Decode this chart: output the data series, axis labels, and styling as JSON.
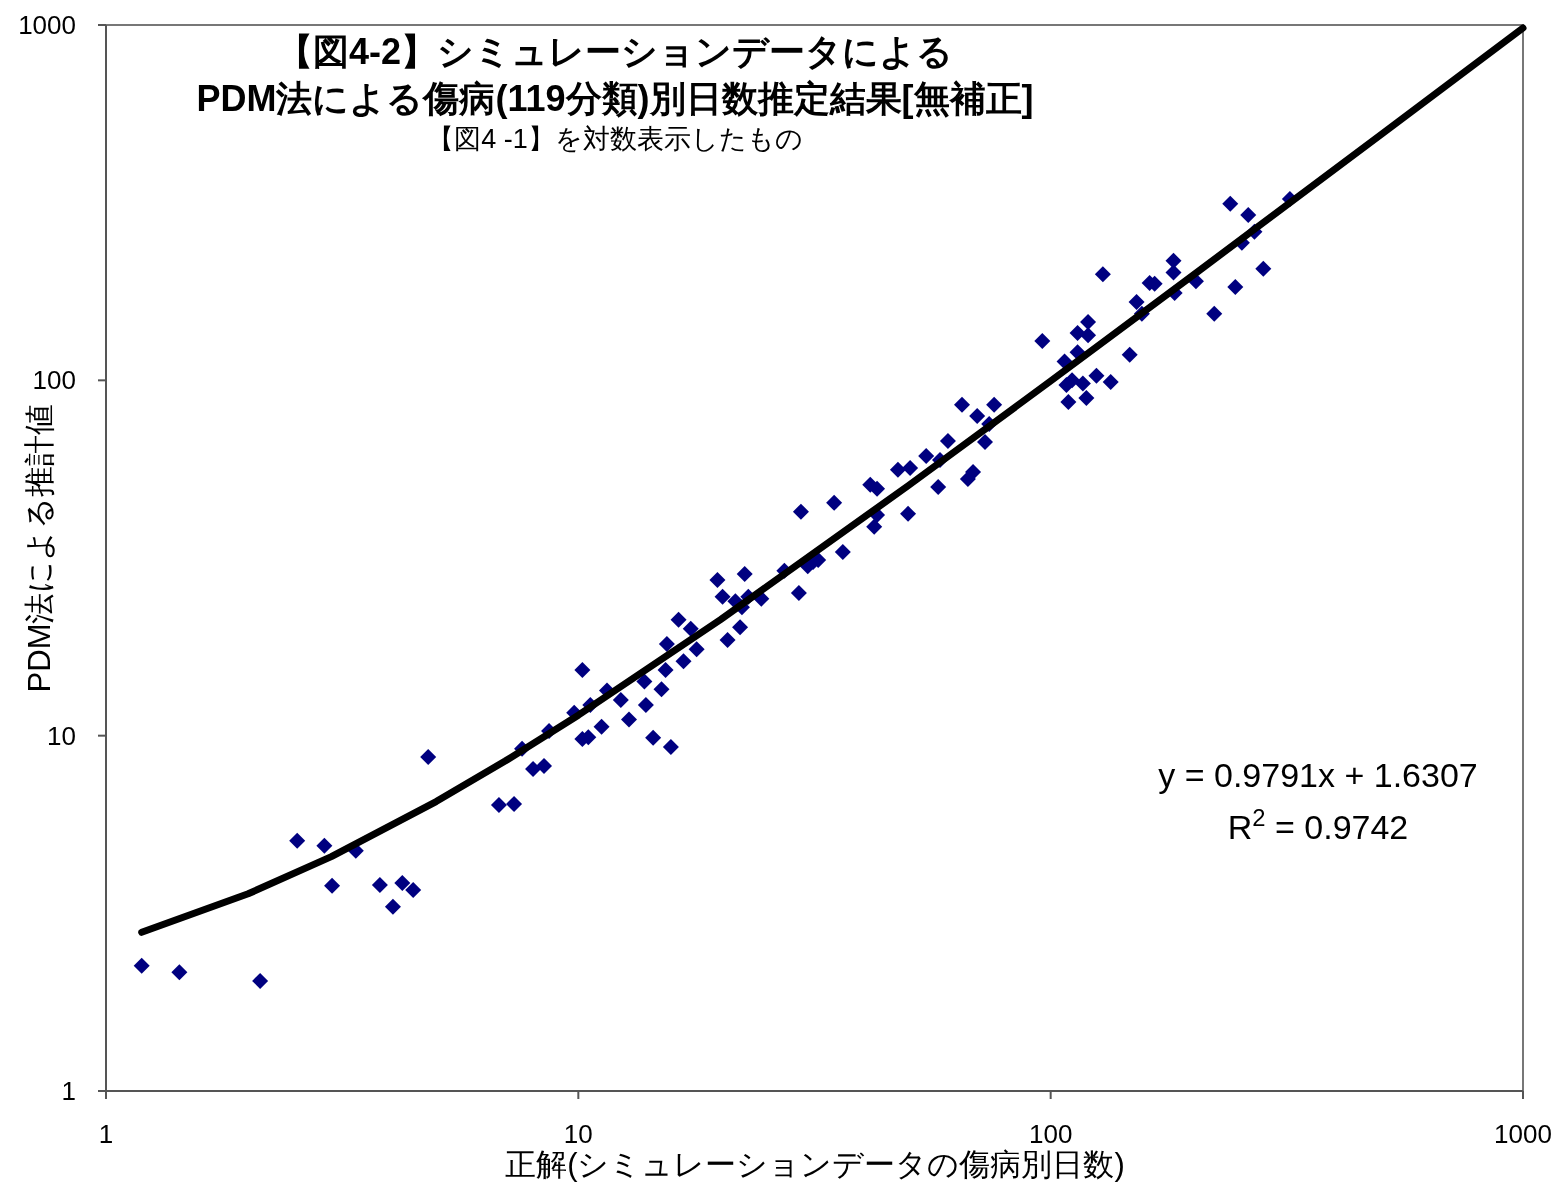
{
  "chart_data": {
    "type": "scatter",
    "title": "【図4-2】シミュレーションデータによる\nPDM法による傷病(119分類)別日数推定結果[無補正]",
    "subtitle": "【図4 -1】を対数表示したもの",
    "xlabel": "正解(シミュレーションデータの傷病別日数)",
    "ylabel": "PDM法による推計値",
    "log": "xy",
    "xlim": [
      1,
      1000
    ],
    "ylim": [
      1,
      1000
    ],
    "xticks": [
      1,
      10,
      100,
      1000
    ],
    "yticks": [
      1,
      10,
      100,
      1000
    ],
    "grid": false,
    "annotations": [
      "y = 0.9791x + 1.6307",
      "R$^{2}$ = 0.9742"
    ],
    "series": [
      {
        "color": "#000080",
        "marker": "diamond",
        "x": [
          1.19,
          1.43,
          2.12,
          2.54,
          2.9,
          3.01,
          3.38,
          3.8,
          4.05,
          4.24,
          4.47,
          4.81,
          6.79,
          7.31,
          7.6,
          8.02,
          8.46,
          8.67,
          9.8,
          10.2,
          10.2,
          10.5,
          10.6,
          11.2,
          11.5,
          12.3,
          12.8,
          13.8,
          13.9,
          14.4,
          15.0,
          15.3,
          15.4,
          15.7,
          16.3,
          16.7,
          17.3,
          17.8,
          19.7,
          20.2,
          20.7,
          21.5,
          22.0,
          22.2,
          22.5,
          22.9,
          24.4,
          27.3,
          29.3,
          29.6,
          30.6,
          31.4,
          32.2,
          34.8,
          36.3,
          41.5,
          42.3,
          42.9,
          42.9,
          47.5,
          49.9,
          50.4,
          54.5,
          57.8,
          58.3,
          60.6,
          64.9,
          66.8,
          68.5,
          69.9,
          72.6,
          74.1,
          75.9,
          96,
          107,
          108,
          109,
          111,
          114,
          114,
          117,
          119,
          120,
          120,
          125,
          129,
          134,
          147,
          152,
          156,
          162,
          166,
          182,
          182,
          183,
          203,
          222,
          240,
          246,
          254,
          262,
          270,
          282,
          321
        ],
        "values": [
          2.25,
          2.16,
          2.04,
          5.06,
          4.9,
          3.78,
          4.74,
          3.8,
          3.3,
          3.85,
          3.68,
          8.71,
          6.38,
          6.42,
          9.18,
          8.06,
          8.22,
          10.3,
          11.6,
          15.3,
          9.79,
          9.9,
          12.2,
          10.6,
          13.4,
          12.6,
          11.1,
          14.2,
          12.2,
          9.86,
          13.5,
          15.3,
          18.1,
          9.29,
          21.2,
          16.2,
          20.0,
          17.5,
          27.4,
          24.6,
          18.6,
          23.9,
          20.2,
          23.0,
          28.5,
          24.6,
          24.3,
          29.1,
          25.2,
          42.7,
          30.0,
          30.8,
          31.2,
          45.2,
          32.9,
          50.8,
          38.7,
          49.5,
          41.8,
          56.0,
          42.1,
          56.7,
          61.2,
          50.1,
          59.7,
          67.5,
          85.3,
          52.8,
          55.2,
          79.4,
          67.1,
          75.4,
          85.3,
          129,
          113,
          97,
          86.9,
          100,
          136,
          120,
          98,
          89.2,
          146,
          134,
          103,
          199,
          98.9,
          118,
          166,
          154,
          188,
          187,
          217,
          201,
          176,
          190,
          154,
          314,
          183,
          244,
          292,
          262,
          206,
          324
        ]
      },
      {
        "type": "line",
        "color": "#000000",
        "marker": "none",
        "line_style": "solid",
        "x": [
          1.19,
          2,
          3,
          5,
          7,
          10,
          20,
          50,
          100,
          200,
          500,
          1000
        ],
        "values": [
          2.796,
          3.589,
          4.568,
          6.526,
          8.484,
          11.42,
          21.21,
          50.59,
          99.54,
          197.45,
          491.18,
          980.73
        ]
      }
    ]
  }
}
